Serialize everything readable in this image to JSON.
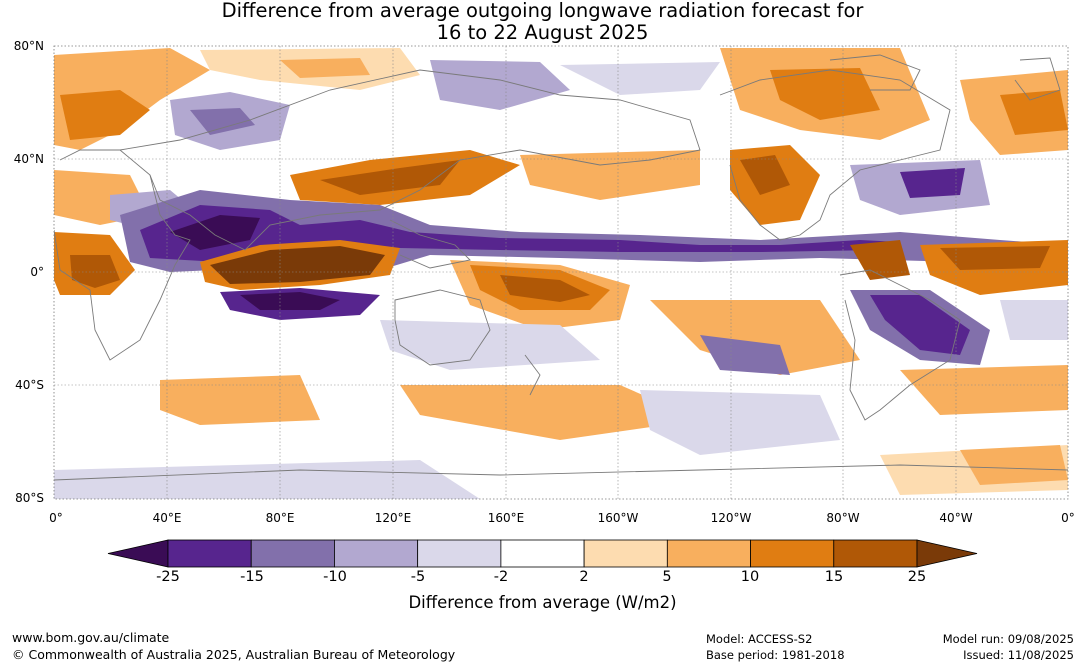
{
  "title": {
    "line1": "Difference from average outgoing longwave radiation forecast for",
    "line2": "16 to 22 August 2025"
  },
  "map": {
    "lat_labels": [
      "80°N",
      "40°N",
      "0°",
      "40°S",
      "80°S"
    ],
    "lon_labels": [
      "0°",
      "40°E",
      "80°E",
      "120°E",
      "160°E",
      "160°W",
      "120°W",
      "80°W",
      "40°W",
      "0°"
    ]
  },
  "colorbar": {
    "ticks": [
      "-25",
      "-15",
      "-10",
      "-5",
      "-2",
      "2",
      "5",
      "10",
      "15",
      "25"
    ],
    "colors": [
      "#3a0c55",
      "#57258e",
      "#8270ab",
      "#b2a8d0",
      "#dad8ea",
      "#ffffff",
      "#fddcb0",
      "#f8af5e",
      "#e07d12",
      "#b05806",
      "#7a3a08"
    ],
    "label": "Difference from average (W/m2)"
  },
  "footer": {
    "website": "www.bom.gov.au/climate",
    "copyright": "© Commonwealth of Australia 2025, Australian Bureau of Meteorology",
    "model": "Model: ACCESS-S2",
    "base_period": "Base period: 1981-2018",
    "model_run": "Model run: 09/08/2025",
    "issued": "Issued: 11/08/2025"
  }
}
